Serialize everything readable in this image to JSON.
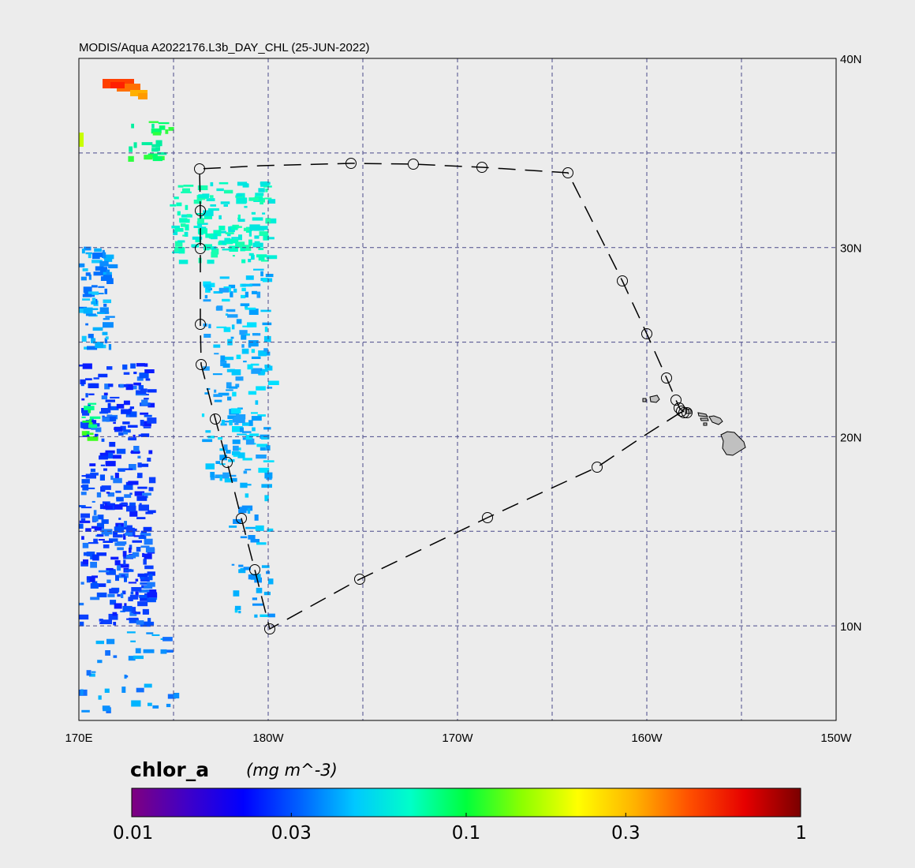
{
  "title": "MODIS/Aqua A2022176.L3b_DAY_CHL (25-JUN-2022)",
  "map": {
    "lon_range": [
      170,
      210
    ],
    "lat_range": [
      5,
      40
    ],
    "lon_ticks": [
      {
        "value": 170,
        "label": "170E"
      },
      {
        "value": 180,
        "label": "180W"
      },
      {
        "value": 190,
        "label": "170W"
      },
      {
        "value": 200,
        "label": "160W"
      },
      {
        "value": 210,
        "label": "150W"
      }
    ],
    "lat_ticks": [
      {
        "value": 40,
        "label": "40N"
      },
      {
        "value": 30,
        "label": "30N"
      },
      {
        "value": 20,
        "label": "20N"
      },
      {
        "value": 10,
        "label": "10N"
      }
    ],
    "grid_lons": [
      175,
      180,
      185,
      190,
      195,
      200,
      205
    ],
    "grid_lats": [
      10,
      15,
      20,
      25,
      30,
      35
    ],
    "track": [
      [
        206.0,
        21.3
      ],
      [
        206.3,
        21.2
      ],
      [
        206.0,
        21.4
      ],
      [
        205.6,
        21.6
      ],
      [
        205.4,
        22.0
      ],
      [
        205.0,
        23.1
      ],
      [
        200.0,
        25.5
      ],
      [
        198.7,
        28.3
      ],
      [
        195.8,
        34.0
      ],
      [
        191.3,
        34.3
      ],
      [
        187.7,
        34.4
      ],
      [
        184.4,
        34.4
      ],
      [
        176.4,
        34.2
      ],
      [
        176.4,
        32.0
      ],
      [
        176.4,
        30.0
      ],
      [
        176.4,
        26.0
      ],
      [
        176.5,
        23.9
      ],
      [
        177.3,
        21.0
      ],
      [
        177.8,
        18.7
      ],
      [
        178.6,
        15.8
      ],
      [
        179.3,
        13.0
      ],
      [
        180.0,
        9.9
      ],
      [
        184.8,
        12.5
      ],
      [
        191.6,
        15.8
      ],
      [
        197.5,
        18.5
      ],
      [
        200.0,
        20.0
      ],
      [
        205.5,
        21.3
      ]
    ],
    "stations": [
      [
        176.4,
        34.2
      ],
      [
        176.4,
        32.0
      ],
      [
        176.4,
        30.0
      ],
      [
        176.4,
        26.0
      ],
      [
        176.5,
        23.9
      ],
      [
        177.3,
        21.0
      ],
      [
        177.8,
        18.7
      ],
      [
        178.6,
        15.8
      ],
      [
        179.3,
        13.0
      ],
      [
        180.0,
        9.9
      ],
      [
        184.8,
        12.5
      ],
      [
        191.6,
        15.8
      ],
      [
        197.5,
        18.5
      ],
      [
        184.4,
        34.4
      ],
      [
        187.7,
        34.4
      ],
      [
        191.3,
        34.3
      ],
      [
        195.8,
        34.0
      ],
      [
        198.7,
        28.3
      ],
      [
        200.0,
        25.5
      ],
      [
        201.0,
        23.1
      ],
      [
        201.5,
        21.9
      ],
      [
        201.7,
        21.5
      ],
      [
        201.8,
        21.3
      ],
      [
        202.0,
        21.3
      ],
      [
        202.2,
        21.2
      ]
    ]
  },
  "colorbar": {
    "title": "chlor_a",
    "units": "(mg m^-3)",
    "ticks": [
      {
        "value": 0.01,
        "label": "0.01"
      },
      {
        "value": 0.03,
        "label": "0.03"
      },
      {
        "value": 0.1,
        "label": "0.1"
      },
      {
        "value": 0.3,
        "label": "0.3"
      },
      {
        "value": 1,
        "label": "1"
      }
    ],
    "stops": [
      "#7f007f",
      "#3f00c8",
      "#0000ff",
      "#0060ff",
      "#00c8ff",
      "#00ffc8",
      "#00ff3c",
      "#8cff00",
      "#ffff00",
      "#ffb400",
      "#ff5000",
      "#e60000",
      "#7a0000"
    ]
  },
  "colors": {
    "background": "#ececec",
    "grid": "#4a4a8a",
    "land": "#c0c0c0",
    "track": "#000000"
  }
}
